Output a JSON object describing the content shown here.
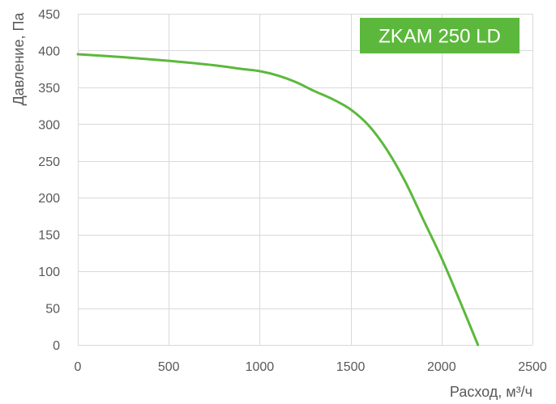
{
  "chart_data": {
    "type": "line",
    "title": "",
    "xlabel": "Расход, м³/ч",
    "ylabel": "Давление, Па",
    "xlim": [
      0,
      2500
    ],
    "ylim": [
      0,
      450
    ],
    "xticks": [
      0,
      500,
      1000,
      1500,
      2000,
      2500
    ],
    "yticks": [
      0,
      50,
      100,
      150,
      200,
      250,
      300,
      350,
      400,
      450
    ],
    "grid": true,
    "legend": "none",
    "badge": "ZKAM 250 LD",
    "colors": {
      "line": "#5cb83c",
      "badge": "#5cb83c",
      "grid": "#d9d9d9",
      "tick_text": "#595959"
    },
    "series": [
      {
        "x": [
          0,
          250,
          500,
          750,
          900,
          1000,
          1100,
          1200,
          1300,
          1400,
          1500,
          1600,
          1700,
          1800,
          1900,
          2000,
          2100,
          2200
        ],
        "y": [
          395,
          391,
          386,
          380,
          375,
          372,
          366,
          357,
          345,
          334,
          320,
          298,
          265,
          222,
          170,
          118,
          60,
          0
        ]
      }
    ]
  }
}
